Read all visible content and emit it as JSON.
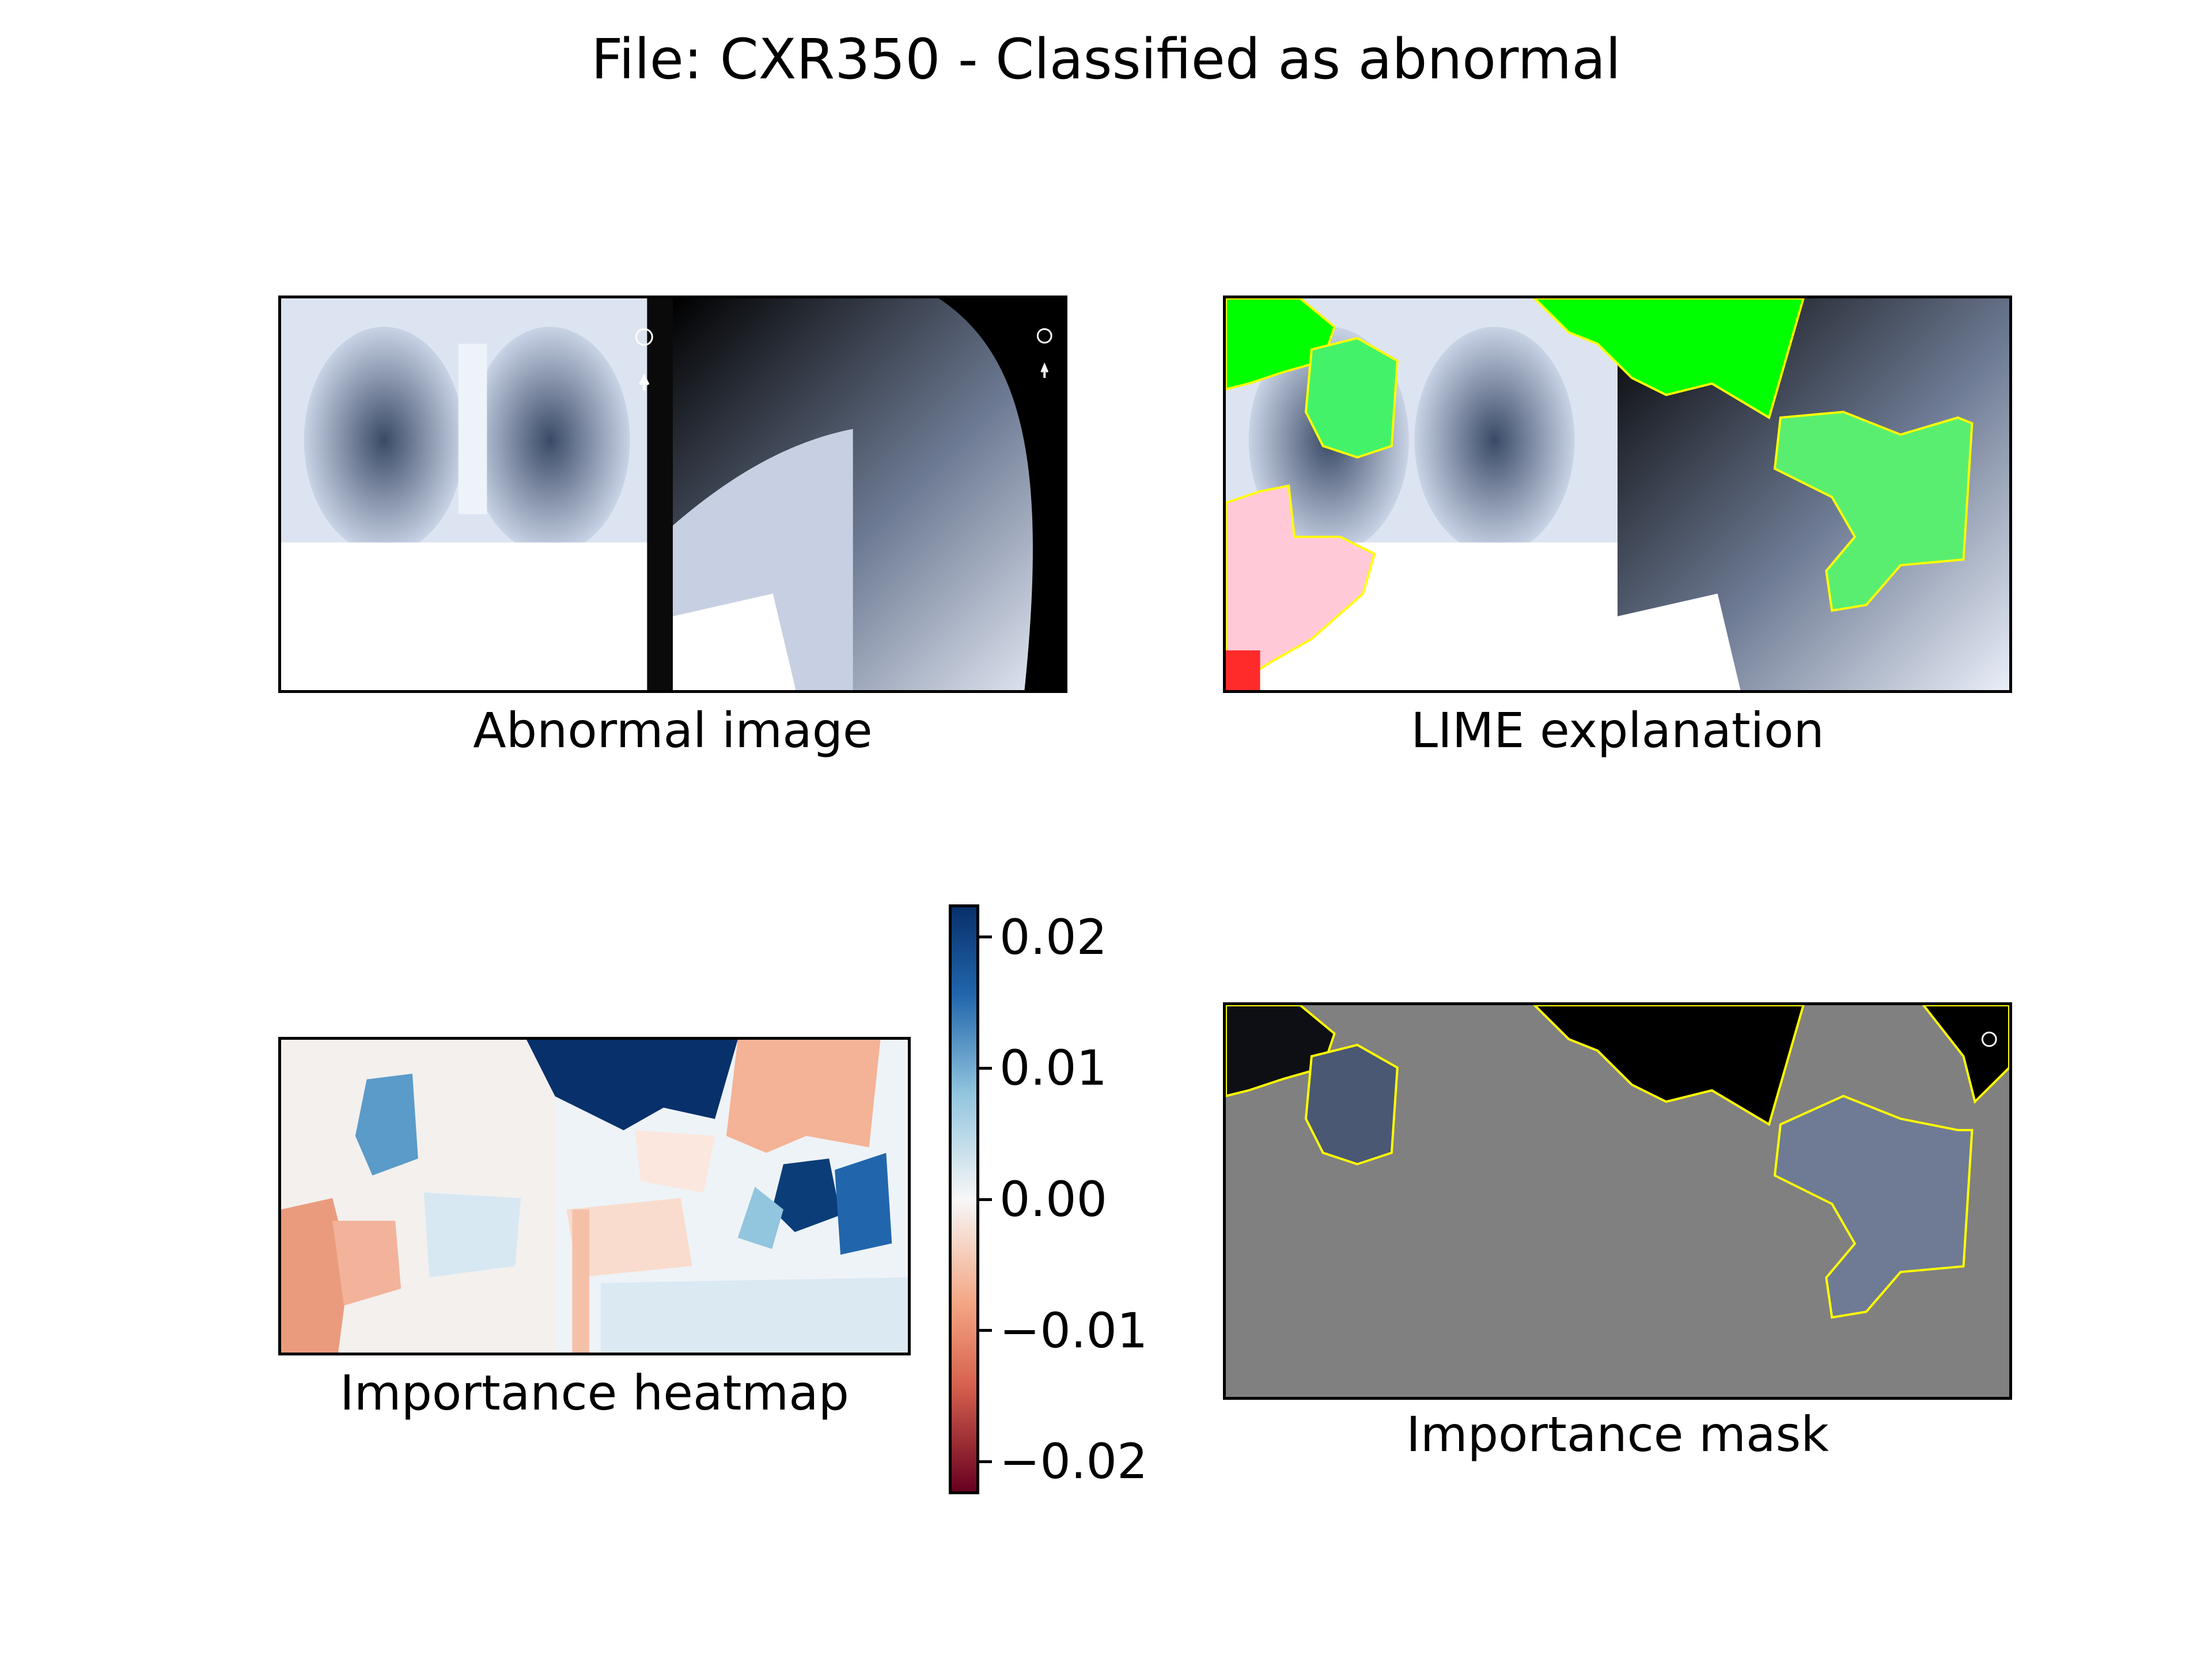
{
  "figure": {
    "title": "File: CXR350 - Classified as abnormal"
  },
  "panels": {
    "original": {
      "caption": "Abnormal image"
    },
    "lime": {
      "caption": "LIME explanation"
    },
    "heatmap": {
      "caption": "Importance heatmap"
    },
    "mask": {
      "caption": "Importance mask"
    }
  },
  "chart_data": {
    "type": "heatmap",
    "title": "File: CXR350 - Classified as abnormal",
    "colorbar": {
      "colormap": "RdBu",
      "range": [
        -0.0225,
        0.0225
      ],
      "ticks": [
        0.02,
        0.01,
        0.0,
        -0.01,
        -0.02
      ],
      "tick_labels": [
        "0.02",
        "0.01",
        "0.00",
        "−0.01",
        "−0.02"
      ]
    },
    "colors": {
      "positive_region": "#00ff00",
      "negative_region": "#ff0000",
      "boundary": "#ffff00",
      "mask_fill": "#808080",
      "strong_positive": "#08306b",
      "neutral": "#f7f7f7",
      "strong_negative": "#67001f"
    }
  }
}
